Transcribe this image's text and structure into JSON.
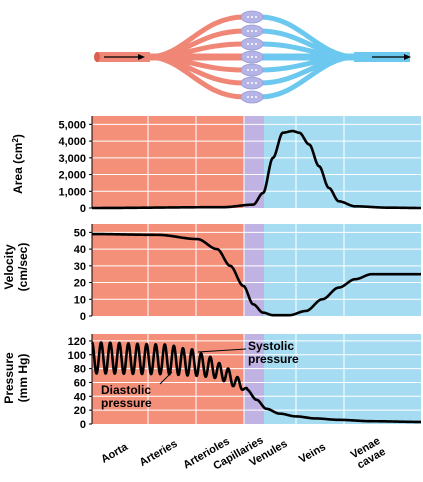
{
  "colors": {
    "arterial": "#f4907a",
    "venous": "#a6dcf2",
    "capillary": "#c0b3e3",
    "vessel_arterial": "#ef8676",
    "vessel_venous": "#6cc8ee",
    "capillary_bed": "#b4b4e6",
    "curve": "#000000",
    "grid": "#ffffff"
  },
  "vessel_diagram": {
    "arrow_left": "arrow-right-icon",
    "arrow_right": "arrow-right-icon"
  },
  "segments": [
    "Aorta",
    "Arteries",
    "Arterioles",
    "Capillaries",
    "Venules",
    "Veins",
    "Venae cavae"
  ],
  "chart_data": [
    {
      "type": "line",
      "name": "area",
      "ylabel_lines": [
        "Area (cm",
        ")"
      ],
      "ylabel_superscript": "2",
      "yticks": [
        "0",
        "1,000",
        "2,000",
        "3,000",
        "4,000",
        "5,000"
      ],
      "ylim": [
        0,
        5500
      ],
      "x": [
        0,
        0.4,
        0.49,
        0.52,
        0.55,
        0.58,
        0.61,
        0.63,
        0.66,
        0.69,
        0.72,
        0.75,
        0.8,
        0.9,
        1.0
      ],
      "y": [
        0,
        50,
        200,
        900,
        3000,
        4500,
        4600,
        4500,
        3800,
        2500,
        1200,
        400,
        100,
        20,
        0
      ]
    },
    {
      "type": "line",
      "name": "velocity",
      "ylabel_lines": [
        "Velocity",
        "(cm/sec)"
      ],
      "yticks": [
        "0",
        "10",
        "20",
        "30",
        "40",
        "50"
      ],
      "ylim": [
        0,
        55
      ],
      "x": [
        0,
        0.2,
        0.32,
        0.38,
        0.42,
        0.46,
        0.49,
        0.52,
        0.55,
        0.6,
        0.65,
        0.7,
        0.75,
        0.8,
        0.85,
        1.0
      ],
      "y": [
        49,
        48.5,
        46,
        40,
        30,
        18,
        7,
        2,
        0.5,
        0.5,
        3,
        10,
        17,
        22,
        25,
        25
      ]
    },
    {
      "type": "line",
      "name": "pressure",
      "ylabel_lines": [
        "Pressure",
        "(mm Hg)"
      ],
      "yticks": [
        "0",
        "20",
        "40",
        "60",
        "80",
        "100",
        "120"
      ],
      "ylim": [
        0,
        130
      ],
      "oscillation_cycles": 17,
      "systolic_x": [
        0,
        0.22,
        0.3,
        0.36,
        0.4,
        0.44,
        0.47
      ],
      "systolic_y": [
        118,
        115,
        108,
        97,
        85,
        68,
        52
      ],
      "diastolic_x": [
        0,
        0.22,
        0.3,
        0.36,
        0.4,
        0.44,
        0.47
      ],
      "diastolic_y": [
        73,
        72,
        70,
        68,
        62,
        53,
        47
      ],
      "decay_x": [
        0.47,
        0.5,
        0.53,
        0.57,
        0.62,
        0.68,
        0.75,
        0.85,
        1.0
      ],
      "decay_y": [
        50,
        35,
        22,
        15,
        11,
        8,
        6,
        4,
        3
      ],
      "annotations": {
        "systolic": [
          "Systolic",
          "pressure"
        ],
        "diastolic": [
          "Diastolic",
          "pressure"
        ]
      }
    }
  ]
}
